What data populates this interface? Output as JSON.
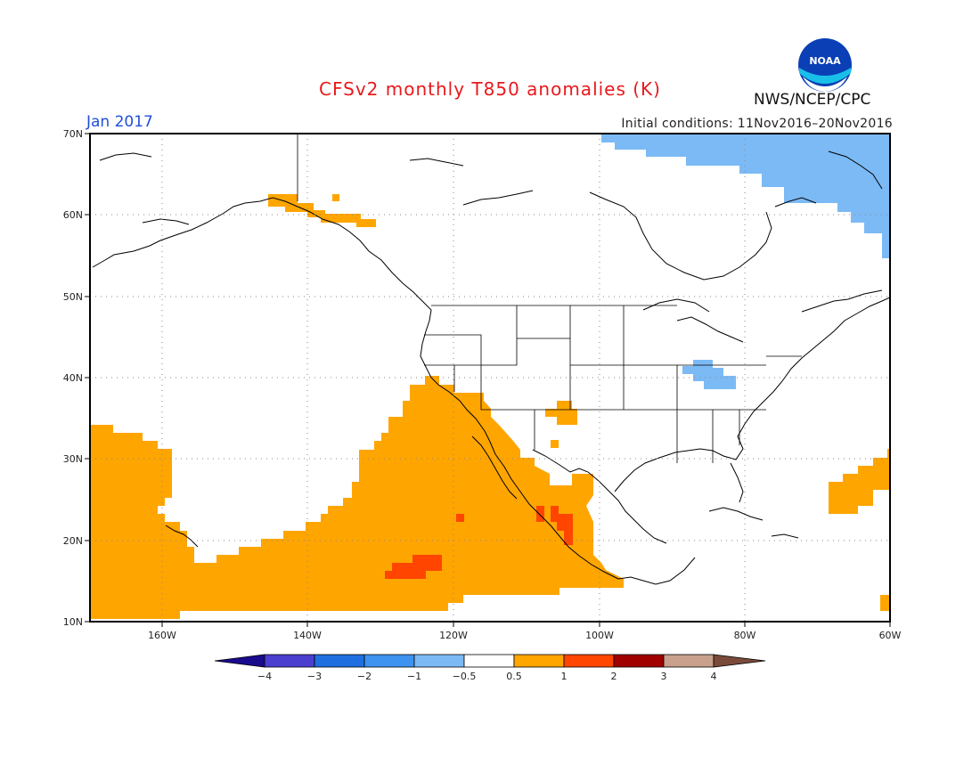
{
  "header": {
    "title": "CFSv2 monthly T850 anomalies (K)",
    "month": "Jan 2017",
    "initial_conditions": "Initial conditions: 11Nov2016–20Nov2016",
    "agency": "NWS/NCEP/CPC",
    "logo_text": "NOAA"
  },
  "map": {
    "lon_range": [
      -170,
      -60
    ],
    "lat_range": [
      10,
      70
    ],
    "lon_ticks": [
      "160W",
      "140W",
      "120W",
      "100W",
      "80W",
      "60W"
    ],
    "lat_ticks": [
      "10N",
      "20N",
      "30N",
      "40N",
      "50N",
      "60N",
      "70N"
    ],
    "grid": true
  },
  "colorbar": {
    "tick_labels": [
      "−4",
      "−3",
      "−2",
      "−1",
      "−0.5",
      "0.5",
      "1",
      "2",
      "3",
      "4"
    ],
    "colors": [
      "#1a0a8c",
      "#4b3fd0",
      "#1f6fe0",
      "#3e92f0",
      "#7cbaf5",
      "#ffffff",
      "#ffa500",
      "#ff4500",
      "#a00000",
      "#c8a08c",
      "#7a4a3a"
    ]
  }
}
